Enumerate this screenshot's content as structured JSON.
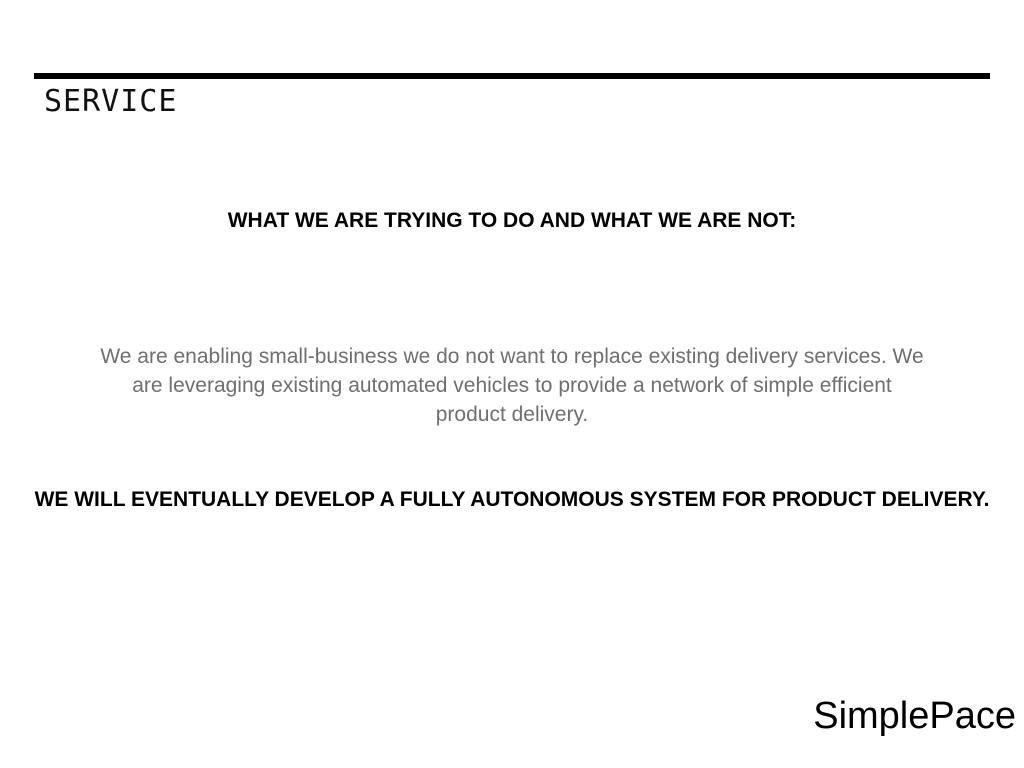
{
  "slide": {
    "section_title": "SERVICE",
    "heading": "WHAT WE ARE TRYING TO DO AND WHAT WE ARE NOT:",
    "body": "We are enabling small-business we do not want to replace existing delivery services. We are leveraging existing automated vehicles to provide a network of simple efficient product delivery.",
    "statement": "WE WILL EVENTUALLY DEVELOP A FULLY AUTONOMOUS SYSTEM FOR PRODUCT DELIVERY.",
    "brand": "SimplePace"
  },
  "colors": {
    "background": "#ffffff",
    "text": "#000000",
    "body_text": "#6f6f6f",
    "rule": "#000000"
  }
}
